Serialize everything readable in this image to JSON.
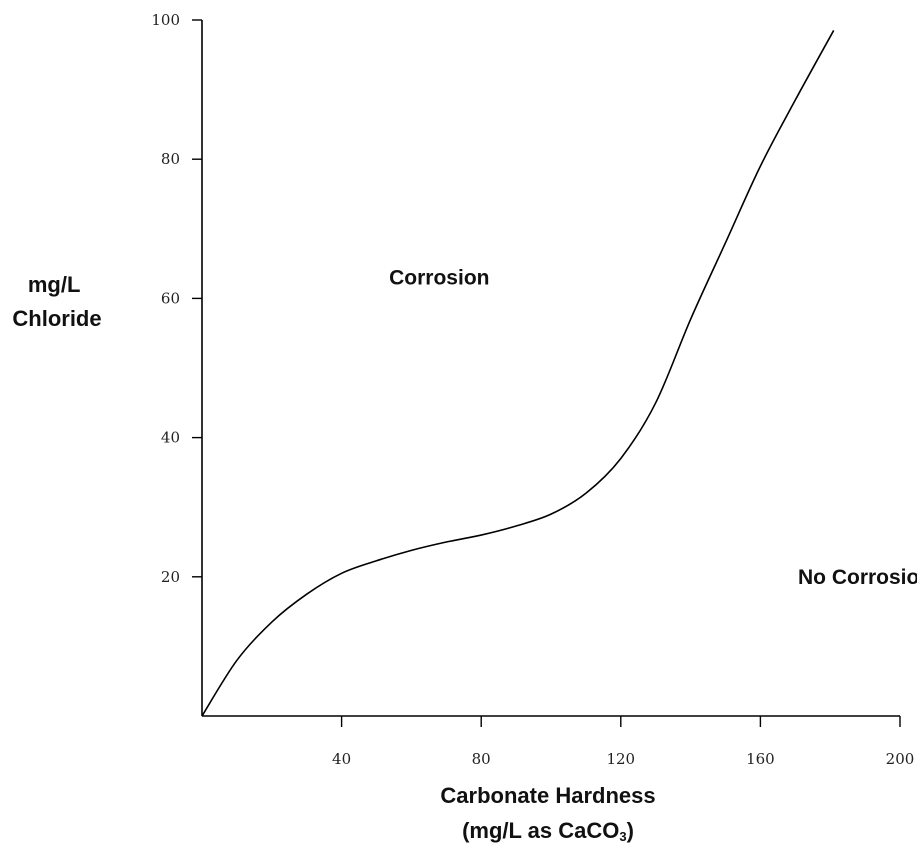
{
  "chart_data": {
    "type": "line",
    "title": "",
    "ylabel_lines": [
      "mg/L",
      "Chloride"
    ],
    "xlabel_line1": "Carbonate Hardness",
    "xlabel_line2_parts": [
      "(mg/L as CaCO",
      "3",
      ")"
    ],
    "xlim": [
      0,
      200
    ],
    "ylim": [
      0,
      100
    ],
    "x_ticks": [
      40,
      80,
      120,
      160,
      200
    ],
    "y_ticks": [
      20,
      40,
      60,
      80,
      100
    ],
    "grid": false,
    "legend": "none",
    "region_labels": [
      {
        "text": "Corrosion",
        "x": 68,
        "y": 63
      },
      {
        "text": "No Corrosion",
        "x": 190,
        "y": 20
      }
    ],
    "series": [
      {
        "x": [
          0,
          10,
          20,
          30,
          40,
          50,
          60,
          70,
          80,
          90,
          100,
          110,
          120,
          130,
          140,
          150,
          160,
          170,
          181
        ],
        "y": [
          0,
          8,
          13.5,
          17.5,
          20.5,
          22.3,
          23.8,
          25,
          26,
          27.3,
          29,
          32,
          37,
          45,
          57,
          68,
          79,
          88.5,
          98.5
        ]
      }
    ]
  }
}
